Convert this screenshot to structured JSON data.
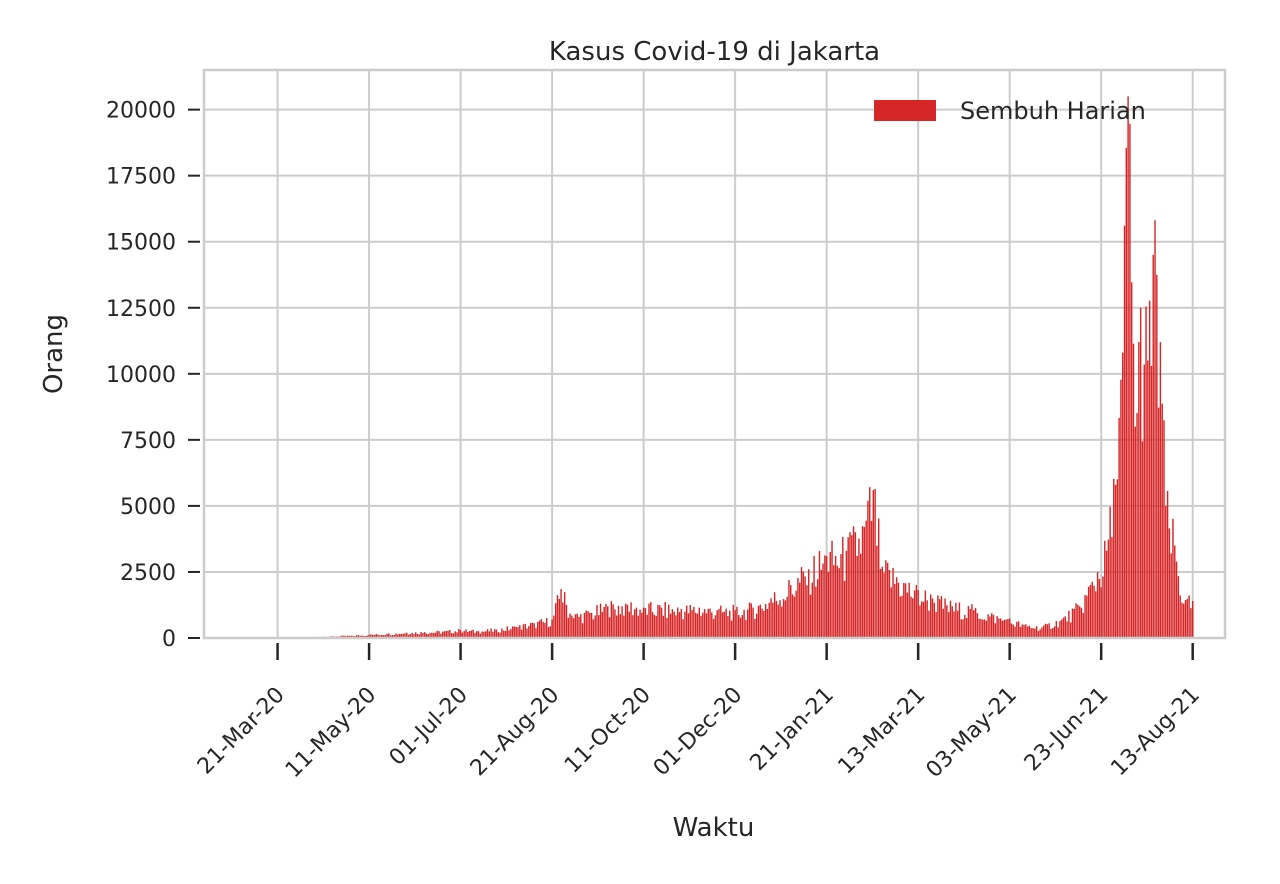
{
  "chart_data": {
    "type": "bar",
    "title": "Kasus Covid-19 di Jakarta",
    "xlabel": "Waktu",
    "ylabel": "Orang",
    "ylim": [
      0,
      21500
    ],
    "xlim": [
      "2020-02-09",
      "2021-08-31"
    ],
    "grid": true,
    "legend_position": "top-right",
    "y_ticks": [
      0,
      2500,
      5000,
      7500,
      10000,
      12500,
      15000,
      17500,
      20000
    ],
    "y_tick_labels": [
      "0",
      "2500",
      "5000",
      "7500",
      "10000",
      "12500",
      "15000",
      "17500",
      "20000"
    ],
    "x_ticks": [
      "2020-03-21",
      "2020-05-11",
      "2020-07-01",
      "2020-08-21",
      "2020-10-11",
      "2020-12-01",
      "2021-01-21",
      "2021-03-13",
      "2021-05-03",
      "2021-06-23",
      "2021-08-13"
    ],
    "x_tick_labels": [
      "21-Mar-20",
      "11-May-20",
      "01-Jul-20",
      "21-Aug-20",
      "11-Oct-20",
      "01-Dec-20",
      "21-Jan-21",
      "13-Mar-21",
      "03-May-21",
      "23-Jun-21",
      "13-Aug-21"
    ],
    "colors": {
      "bar": "#d62728",
      "grid": "#cccccc",
      "axes": "#cccccc",
      "text": "#262626"
    },
    "series": [
      {
        "name": "Sembuh Harian",
        "points": [
          [
            "2020-03-21",
            0
          ],
          [
            "2020-04-01",
            10
          ],
          [
            "2020-04-10",
            40
          ],
          [
            "2020-04-20",
            60
          ],
          [
            "2020-05-01",
            90
          ],
          [
            "2020-05-11",
            120
          ],
          [
            "2020-05-21",
            160
          ],
          [
            "2020-06-01",
            200
          ],
          [
            "2020-06-11",
            220
          ],
          [
            "2020-06-21",
            240
          ],
          [
            "2020-07-01",
            300
          ],
          [
            "2020-07-11",
            260
          ],
          [
            "2020-07-21",
            320
          ],
          [
            "2020-08-01",
            420
          ],
          [
            "2020-08-11",
            560
          ],
          [
            "2020-08-21",
            700
          ],
          [
            "2020-08-26",
            1850
          ],
          [
            "2020-09-01",
            850
          ],
          [
            "2020-09-11",
            950
          ],
          [
            "2020-09-21",
            1200
          ],
          [
            "2020-10-01",
            1300
          ],
          [
            "2020-10-11",
            1150
          ],
          [
            "2020-10-21",
            1150
          ],
          [
            "2020-11-01",
            1100
          ],
          [
            "2020-11-11",
            1150
          ],
          [
            "2020-11-21",
            1050
          ],
          [
            "2020-12-01",
            1050
          ],
          [
            "2020-12-11",
            1150
          ],
          [
            "2020-12-21",
            1500
          ],
          [
            "2021-01-01",
            2000
          ],
          [
            "2021-01-11",
            2600
          ],
          [
            "2021-01-21",
            3100
          ],
          [
            "2021-02-01",
            3300
          ],
          [
            "2021-02-11",
            4200
          ],
          [
            "2021-02-16",
            5600
          ],
          [
            "2021-02-21",
            2700
          ],
          [
            "2021-03-01",
            2300
          ],
          [
            "2021-03-11",
            1800
          ],
          [
            "2021-03-21",
            1500
          ],
          [
            "2021-04-01",
            1200
          ],
          [
            "2021-04-11",
            1100
          ],
          [
            "2021-04-21",
            900
          ],
          [
            "2021-05-01",
            700
          ],
          [
            "2021-05-11",
            500
          ],
          [
            "2021-05-21",
            400
          ],
          [
            "2021-06-01",
            700
          ],
          [
            "2021-06-11",
            1200
          ],
          [
            "2021-06-21",
            2500
          ],
          [
            "2021-06-26",
            3300
          ],
          [
            "2021-07-01",
            5800
          ],
          [
            "2021-07-05",
            10800
          ],
          [
            "2021-07-08",
            20500
          ],
          [
            "2021-07-12",
            8000
          ],
          [
            "2021-07-15",
            12500
          ],
          [
            "2021-07-19",
            10500
          ],
          [
            "2021-07-22",
            14500
          ],
          [
            "2021-07-26",
            11200
          ],
          [
            "2021-07-29",
            5000
          ],
          [
            "2021-08-03",
            3500
          ],
          [
            "2021-08-08",
            1300
          ],
          [
            "2021-08-13",
            1400
          ]
        ]
      }
    ]
  }
}
